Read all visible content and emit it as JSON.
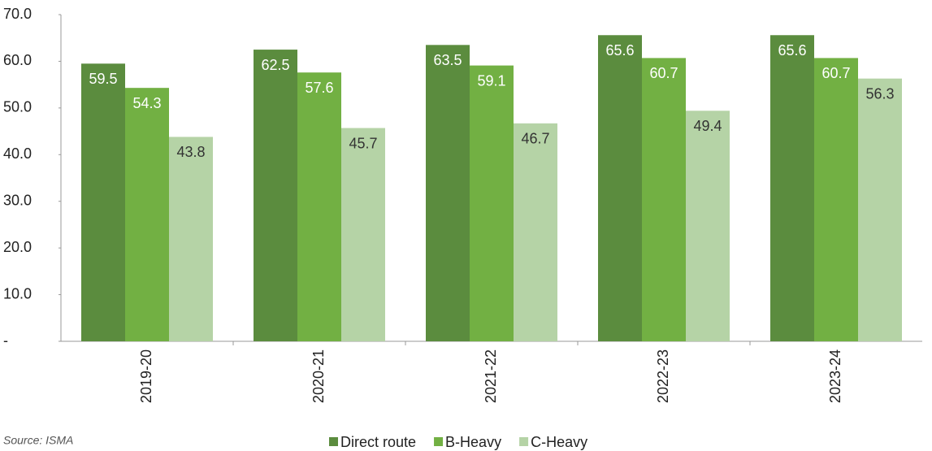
{
  "chart_data": {
    "type": "bar",
    "categories": [
      "2019-20",
      "2020-21",
      "2021-22",
      "2022-23",
      "2023-24"
    ],
    "series": [
      {
        "name": "Direct route",
        "color": "#5b8c3e",
        "values": [
          59.5,
          62.5,
          63.5,
          65.6,
          65.6
        ]
      },
      {
        "name": "B-Heavy",
        "color": "#72b043",
        "values": [
          54.3,
          57.6,
          59.1,
          60.7,
          60.7
        ]
      },
      {
        "name": "C-Heavy",
        "color": "#b5d3a6",
        "values": [
          43.8,
          45.7,
          46.7,
          49.4,
          56.3
        ]
      }
    ],
    "ylim": [
      0,
      70
    ],
    "yticks": [
      {
        "value": 0,
        "label": "-"
      },
      {
        "value": 10,
        "label": "10.0"
      },
      {
        "value": 20,
        "label": "20.0"
      },
      {
        "value": 30,
        "label": "30.0"
      },
      {
        "value": 40,
        "label": "40.0"
      },
      {
        "value": 50,
        "label": "50.0"
      },
      {
        "value": 60,
        "label": "60.0"
      },
      {
        "value": 70,
        "label": "70.0"
      }
    ],
    "grid": false,
    "legend": "bottom",
    "source": "Source: ISMA"
  }
}
